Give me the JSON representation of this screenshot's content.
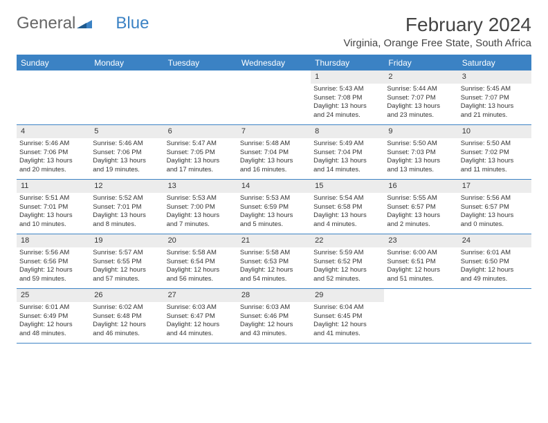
{
  "logo": {
    "text1": "General",
    "text2": "Blue"
  },
  "title": "February 2024",
  "location": "Virginia, Orange Free State, South Africa",
  "colors": {
    "header_bg": "#3b82c4",
    "header_text": "#ffffff",
    "daynum_bg": "#ececec",
    "border": "#3b82c4",
    "text": "#333333"
  },
  "day_names": [
    "Sunday",
    "Monday",
    "Tuesday",
    "Wednesday",
    "Thursday",
    "Friday",
    "Saturday"
  ],
  "weeks": [
    [
      {
        "day": "",
        "sunrise": "",
        "sunset": "",
        "daylight1": "",
        "daylight2": ""
      },
      {
        "day": "",
        "sunrise": "",
        "sunset": "",
        "daylight1": "",
        "daylight2": ""
      },
      {
        "day": "",
        "sunrise": "",
        "sunset": "",
        "daylight1": "",
        "daylight2": ""
      },
      {
        "day": "",
        "sunrise": "",
        "sunset": "",
        "daylight1": "",
        "daylight2": ""
      },
      {
        "day": "1",
        "sunrise": "Sunrise: 5:43 AM",
        "sunset": "Sunset: 7:08 PM",
        "daylight1": "Daylight: 13 hours",
        "daylight2": "and 24 minutes."
      },
      {
        "day": "2",
        "sunrise": "Sunrise: 5:44 AM",
        "sunset": "Sunset: 7:07 PM",
        "daylight1": "Daylight: 13 hours",
        "daylight2": "and 23 minutes."
      },
      {
        "day": "3",
        "sunrise": "Sunrise: 5:45 AM",
        "sunset": "Sunset: 7:07 PM",
        "daylight1": "Daylight: 13 hours",
        "daylight2": "and 21 minutes."
      }
    ],
    [
      {
        "day": "4",
        "sunrise": "Sunrise: 5:46 AM",
        "sunset": "Sunset: 7:06 PM",
        "daylight1": "Daylight: 13 hours",
        "daylight2": "and 20 minutes."
      },
      {
        "day": "5",
        "sunrise": "Sunrise: 5:46 AM",
        "sunset": "Sunset: 7:06 PM",
        "daylight1": "Daylight: 13 hours",
        "daylight2": "and 19 minutes."
      },
      {
        "day": "6",
        "sunrise": "Sunrise: 5:47 AM",
        "sunset": "Sunset: 7:05 PM",
        "daylight1": "Daylight: 13 hours",
        "daylight2": "and 17 minutes."
      },
      {
        "day": "7",
        "sunrise": "Sunrise: 5:48 AM",
        "sunset": "Sunset: 7:04 PM",
        "daylight1": "Daylight: 13 hours",
        "daylight2": "and 16 minutes."
      },
      {
        "day": "8",
        "sunrise": "Sunrise: 5:49 AM",
        "sunset": "Sunset: 7:04 PM",
        "daylight1": "Daylight: 13 hours",
        "daylight2": "and 14 minutes."
      },
      {
        "day": "9",
        "sunrise": "Sunrise: 5:50 AM",
        "sunset": "Sunset: 7:03 PM",
        "daylight1": "Daylight: 13 hours",
        "daylight2": "and 13 minutes."
      },
      {
        "day": "10",
        "sunrise": "Sunrise: 5:50 AM",
        "sunset": "Sunset: 7:02 PM",
        "daylight1": "Daylight: 13 hours",
        "daylight2": "and 11 minutes."
      }
    ],
    [
      {
        "day": "11",
        "sunrise": "Sunrise: 5:51 AM",
        "sunset": "Sunset: 7:01 PM",
        "daylight1": "Daylight: 13 hours",
        "daylight2": "and 10 minutes."
      },
      {
        "day": "12",
        "sunrise": "Sunrise: 5:52 AM",
        "sunset": "Sunset: 7:01 PM",
        "daylight1": "Daylight: 13 hours",
        "daylight2": "and 8 minutes."
      },
      {
        "day": "13",
        "sunrise": "Sunrise: 5:53 AM",
        "sunset": "Sunset: 7:00 PM",
        "daylight1": "Daylight: 13 hours",
        "daylight2": "and 7 minutes."
      },
      {
        "day": "14",
        "sunrise": "Sunrise: 5:53 AM",
        "sunset": "Sunset: 6:59 PM",
        "daylight1": "Daylight: 13 hours",
        "daylight2": "and 5 minutes."
      },
      {
        "day": "15",
        "sunrise": "Sunrise: 5:54 AM",
        "sunset": "Sunset: 6:58 PM",
        "daylight1": "Daylight: 13 hours",
        "daylight2": "and 4 minutes."
      },
      {
        "day": "16",
        "sunrise": "Sunrise: 5:55 AM",
        "sunset": "Sunset: 6:57 PM",
        "daylight1": "Daylight: 13 hours",
        "daylight2": "and 2 minutes."
      },
      {
        "day": "17",
        "sunrise": "Sunrise: 5:56 AM",
        "sunset": "Sunset: 6:57 PM",
        "daylight1": "Daylight: 13 hours",
        "daylight2": "and 0 minutes."
      }
    ],
    [
      {
        "day": "18",
        "sunrise": "Sunrise: 5:56 AM",
        "sunset": "Sunset: 6:56 PM",
        "daylight1": "Daylight: 12 hours",
        "daylight2": "and 59 minutes."
      },
      {
        "day": "19",
        "sunrise": "Sunrise: 5:57 AM",
        "sunset": "Sunset: 6:55 PM",
        "daylight1": "Daylight: 12 hours",
        "daylight2": "and 57 minutes."
      },
      {
        "day": "20",
        "sunrise": "Sunrise: 5:58 AM",
        "sunset": "Sunset: 6:54 PM",
        "daylight1": "Daylight: 12 hours",
        "daylight2": "and 56 minutes."
      },
      {
        "day": "21",
        "sunrise": "Sunrise: 5:58 AM",
        "sunset": "Sunset: 6:53 PM",
        "daylight1": "Daylight: 12 hours",
        "daylight2": "and 54 minutes."
      },
      {
        "day": "22",
        "sunrise": "Sunrise: 5:59 AM",
        "sunset": "Sunset: 6:52 PM",
        "daylight1": "Daylight: 12 hours",
        "daylight2": "and 52 minutes."
      },
      {
        "day": "23",
        "sunrise": "Sunrise: 6:00 AM",
        "sunset": "Sunset: 6:51 PM",
        "daylight1": "Daylight: 12 hours",
        "daylight2": "and 51 minutes."
      },
      {
        "day": "24",
        "sunrise": "Sunrise: 6:01 AM",
        "sunset": "Sunset: 6:50 PM",
        "daylight1": "Daylight: 12 hours",
        "daylight2": "and 49 minutes."
      }
    ],
    [
      {
        "day": "25",
        "sunrise": "Sunrise: 6:01 AM",
        "sunset": "Sunset: 6:49 PM",
        "daylight1": "Daylight: 12 hours",
        "daylight2": "and 48 minutes."
      },
      {
        "day": "26",
        "sunrise": "Sunrise: 6:02 AM",
        "sunset": "Sunset: 6:48 PM",
        "daylight1": "Daylight: 12 hours",
        "daylight2": "and 46 minutes."
      },
      {
        "day": "27",
        "sunrise": "Sunrise: 6:03 AM",
        "sunset": "Sunset: 6:47 PM",
        "daylight1": "Daylight: 12 hours",
        "daylight2": "and 44 minutes."
      },
      {
        "day": "28",
        "sunrise": "Sunrise: 6:03 AM",
        "sunset": "Sunset: 6:46 PM",
        "daylight1": "Daylight: 12 hours",
        "daylight2": "and 43 minutes."
      },
      {
        "day": "29",
        "sunrise": "Sunrise: 6:04 AM",
        "sunset": "Sunset: 6:45 PM",
        "daylight1": "Daylight: 12 hours",
        "daylight2": "and 41 minutes."
      },
      {
        "day": "",
        "sunrise": "",
        "sunset": "",
        "daylight1": "",
        "daylight2": ""
      },
      {
        "day": "",
        "sunrise": "",
        "sunset": "",
        "daylight1": "",
        "daylight2": ""
      }
    ]
  ]
}
